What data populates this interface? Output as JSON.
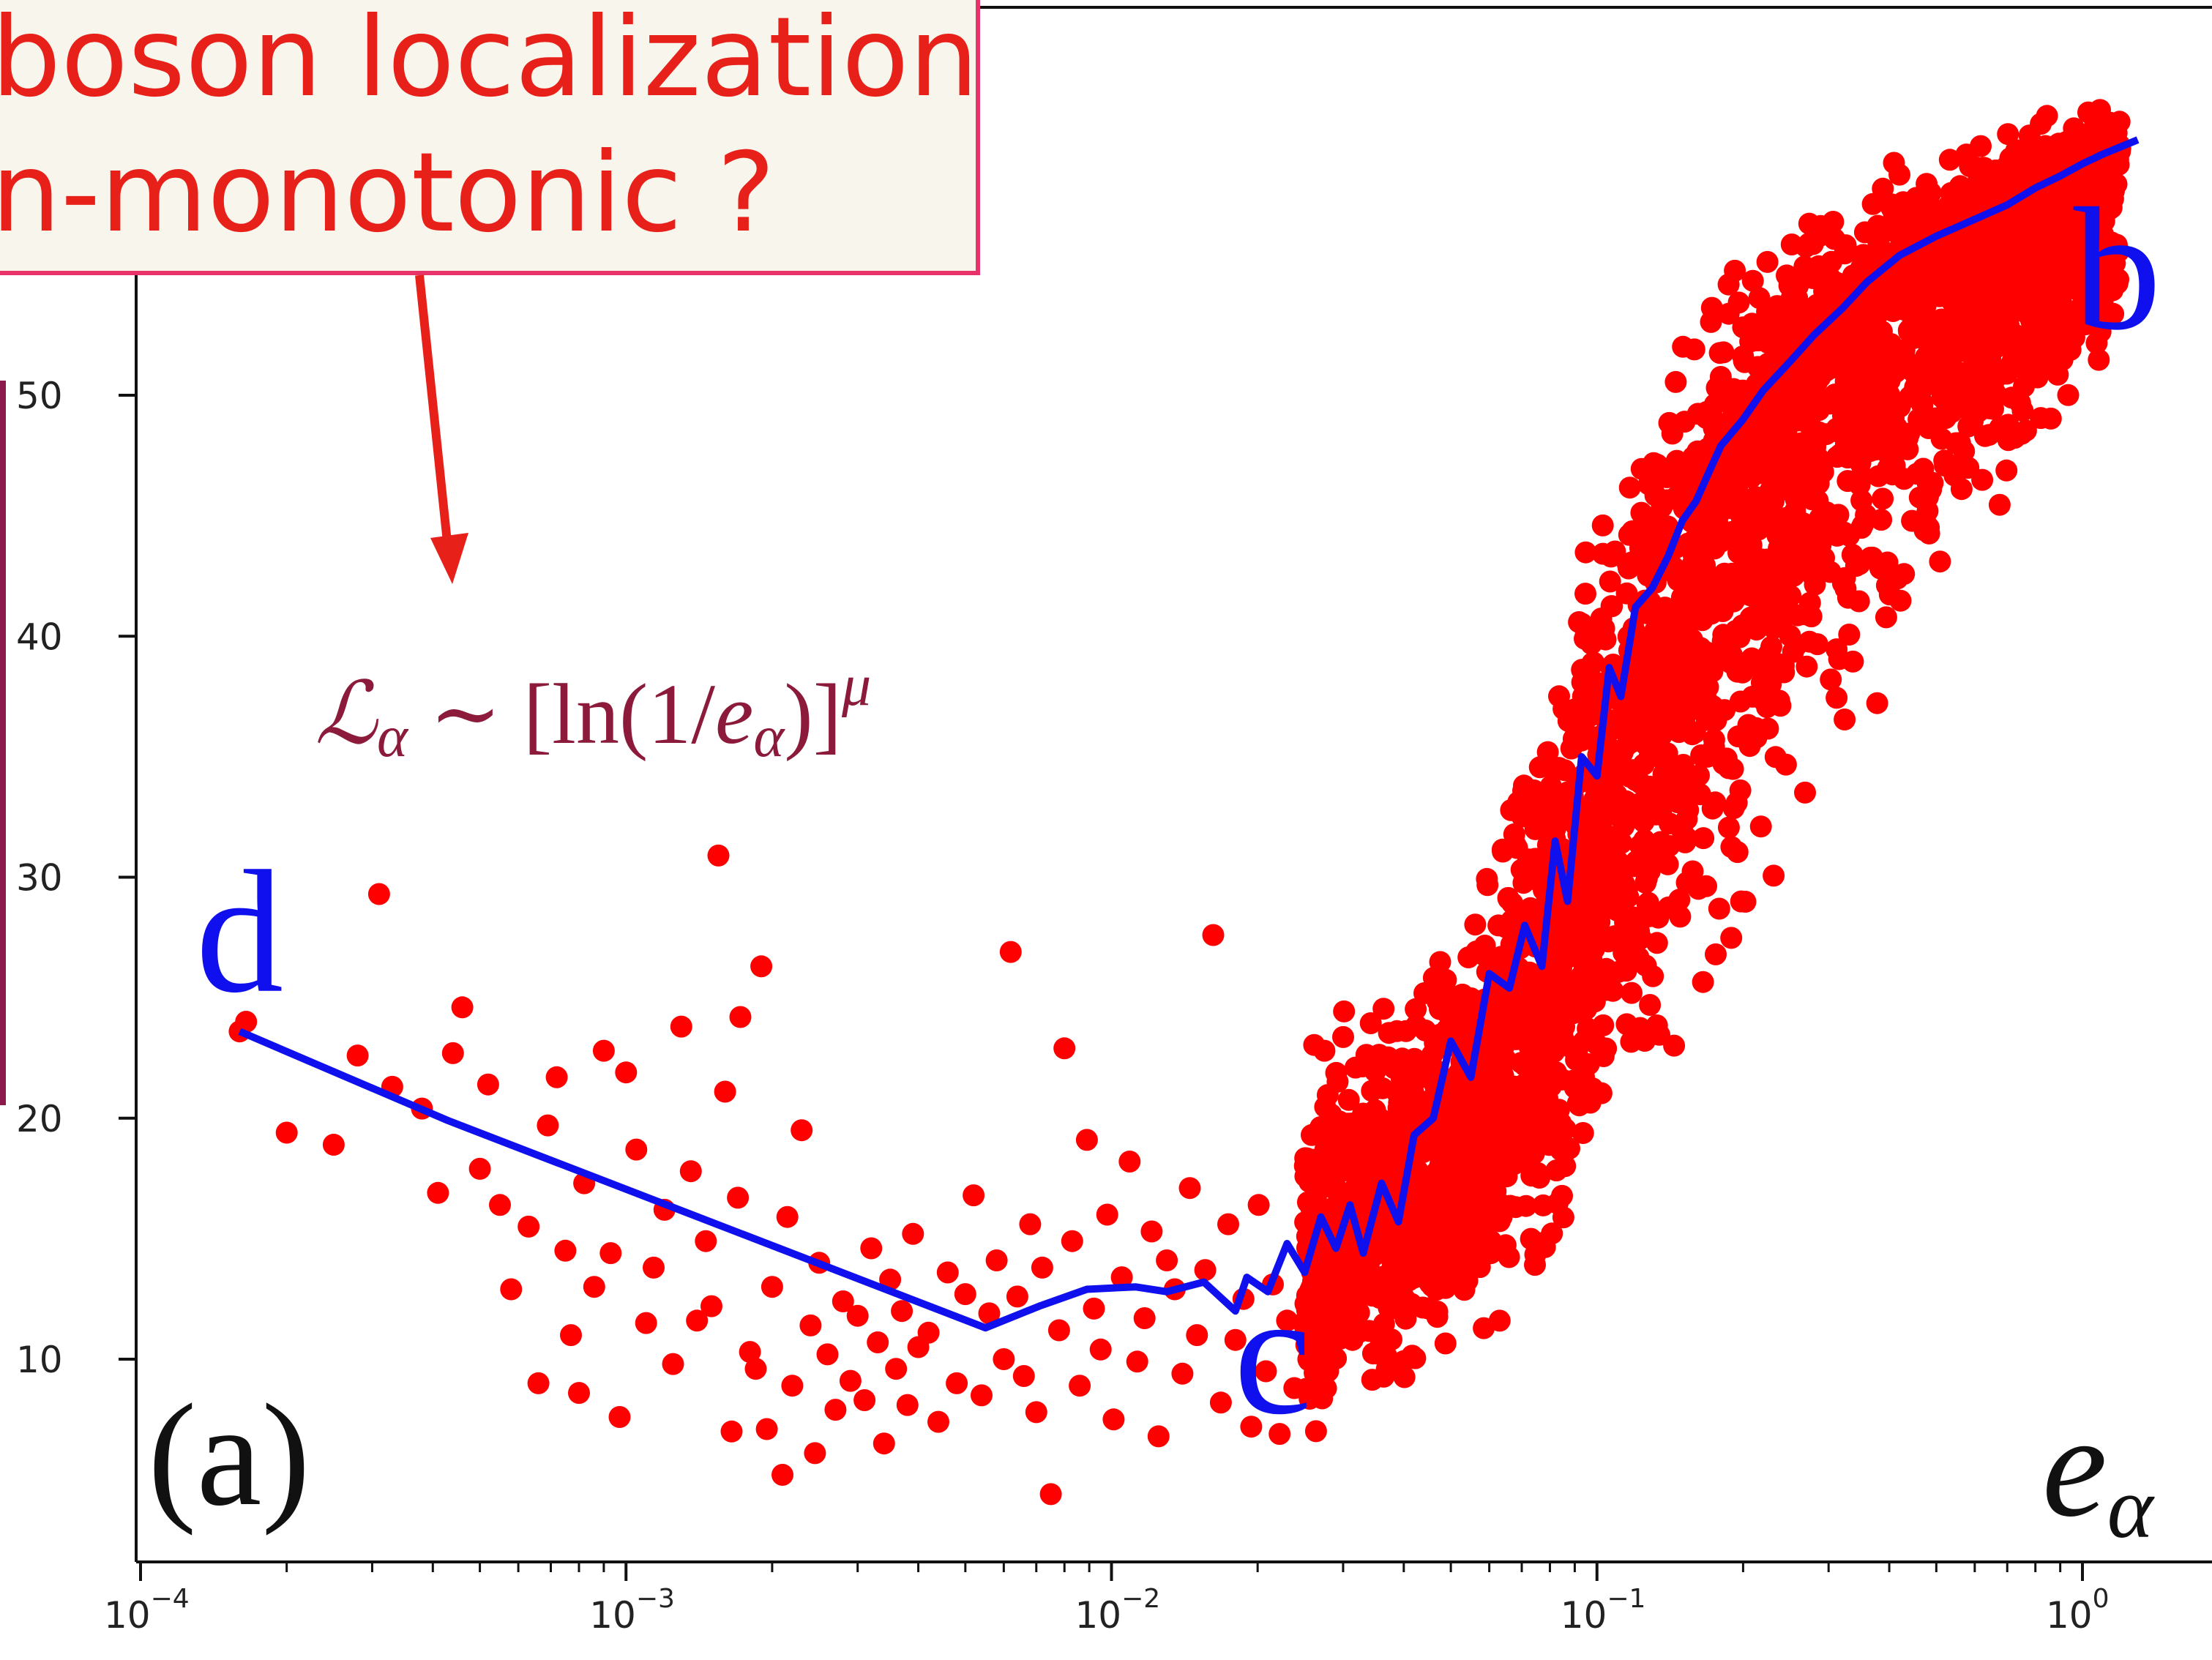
{
  "chart_data": {
    "type": "scatter",
    "title": "",
    "xlabel": "e_α",
    "ylabel": "",
    "xscale": "log",
    "xlim": [
      0.0001,
      2.0
    ],
    "ylim": [
      2.5,
      62
    ],
    "x_ticks": [
      0.0001,
      0.001,
      0.01,
      0.1,
      1
    ],
    "x_tick_base": "10",
    "x_tick_exponents": [
      "−4",
      "−3",
      "−2",
      "−1",
      "0"
    ],
    "y_ticks": [
      10,
      20,
      30,
      40,
      50
    ],
    "y_tick_labels": [
      "10",
      "20",
      "30",
      "40",
      "50"
    ],
    "panel_label": "(a)",
    "formula_annotation": {
      "lhs": "ℒ",
      "lhs_sub": "α",
      "rel": " ∼ [ln(1/",
      "var": "e",
      "var_sub": "α",
      "close": ")]",
      "power": "μ"
    },
    "callout": {
      "line1": "boson localization",
      "line2": "n-monotonic ?"
    },
    "point_labels": [
      {
        "text": "d",
        "x": 0.00016,
        "y": 26.5
      },
      {
        "text": "c",
        "x": 0.022,
        "y": 9.0
      },
      {
        "text": "b",
        "x": 1.18,
        "y": 54.0
      }
    ],
    "colors": {
      "points": "#ff0000",
      "line": "#1010ee",
      "labels": "#1010ee",
      "formula": "#8c1a3a",
      "callout_text": "#e8201a",
      "callout_border": "#e8326a",
      "callout_fill": "#f8f6ec",
      "arrow": "#e8201a",
      "left_bar": "#8c1a4a"
    },
    "series": [
      {
        "kind": "scatter",
        "x": [
          0.00016,
          0.000165,
          0.0002,
          0.00025,
          0.00028,
          0.00031,
          0.00033,
          0.00038,
          0.00041,
          0.00044,
          0.00046,
          0.0005,
          0.00052,
          0.00055,
          0.00058,
          0.00063,
          0.00066,
          0.00069,
          0.00072,
          0.00075,
          0.00077,
          0.0008,
          0.00082,
          0.00086,
          0.0009,
          0.00093,
          0.00097,
          0.001,
          0.00105,
          0.0011,
          0.00114,
          0.0012,
          0.00125,
          0.0013,
          0.00136,
          0.0014,
          0.00146,
          0.0015,
          0.00155,
          0.0016,
          0.00165,
          0.0017,
          0.00172,
          0.0018,
          0.00185,
          0.0019,
          0.00195,
          0.002,
          0.0021,
          0.00215,
          0.0022,
          0.0023,
          0.0024,
          0.00245,
          0.0025,
          0.0026,
          0.0027,
          0.0028,
          0.0029,
          0.003,
          0.0031,
          0.0032,
          0.0033,
          0.0034,
          0.0035,
          0.0036,
          0.0037,
          0.0038,
          0.0039,
          0.004,
          0.0042,
          0.0044,
          0.0046,
          0.0048,
          0.005,
          0.0052,
          0.0054,
          0.0056,
          0.0058,
          0.006,
          0.0062,
          0.0064,
          0.0066,
          0.0068,
          0.007,
          0.0072,
          0.0075,
          0.0078,
          0.008,
          0.0083,
          0.0086,
          0.0089,
          0.0092,
          0.0095,
          0.0098,
          0.0101,
          0.0105,
          0.0109,
          0.0113,
          0.0117,
          0.0121,
          0.0125,
          0.013,
          0.0135,
          0.014,
          0.0145,
          0.015,
          0.0156,
          0.0162,
          0.0168,
          0.0174,
          0.018,
          0.0187,
          0.0194,
          0.0201,
          0.0208,
          0.0215,
          0.0222,
          0.023,
          0.0238
        ],
        "y": [
          23.6,
          24.0,
          19.4,
          18.9,
          22.6,
          29.3,
          21.3,
          20.4,
          16.9,
          22.7,
          24.6,
          17.9,
          21.4,
          16.4,
          12.9,
          15.5,
          9.0,
          19.7,
          21.7,
          14.5,
          11.0,
          8.6,
          17.3,
          13.0,
          22.8,
          14.4,
          7.6,
          21.9,
          18.7,
          11.5,
          13.8,
          16.2,
          9.8,
          23.8,
          17.8,
          11.6,
          14.9,
          12.2,
          30.9,
          21.1,
          7.0,
          16.7,
          24.2,
          10.3,
          9.6,
          26.3,
          7.1,
          13.0,
          5.2,
          15.9,
          8.9,
          19.5,
          11.4,
          6.1,
          14.0,
          10.2,
          7.9,
          12.4,
          9.1,
          11.8,
          8.3,
          14.6,
          10.7,
          6.5,
          13.3,
          9.6,
          12.0,
          8.1,
          15.2,
          10.5,
          11.1,
          7.4,
          13.6,
          9.0,
          12.7,
          16.8,
          8.5,
          11.9,
          14.1,
          10.0,
          26.9,
          12.6,
          9.3,
          15.6,
          7.8,
          13.8,
          4.4,
          11.2,
          22.9,
          14.9,
          8.9,
          19.1,
          12.1,
          10.4,
          16.0,
          7.5,
          13.4,
          18.2,
          9.9,
          11.7,
          15.3,
          6.8,
          14.1,
          12.9,
          9.4,
          17.1,
          11.0,
          13.7,
          27.6,
          8.2,
          15.6,
          10.8,
          12.5,
          7.2,
          16.4,
          9.5,
          13.1,
          6.9,
          11.6,
          8.8
        ]
      },
      {
        "kind": "scatter-cloud",
        "note": "dense cloud of points, e from 0.025 to 1.3, y band widening upward",
        "x": [
          0.025,
          0.03,
          0.035,
          0.04,
          0.05,
          0.06,
          0.07,
          0.08,
          0.09,
          0.1,
          0.12,
          0.14,
          0.16,
          0.18,
          0.2,
          0.25,
          0.3,
          0.4,
          0.5,
          0.6,
          0.8,
          1.0,
          1.2
        ],
        "y_low": [
          5.5,
          6.5,
          7.0,
          7.5,
          8.0,
          9.0,
          9.5,
          10.5,
          11.5,
          13.0,
          16.0,
          18.5,
          21.0,
          23.5,
          26.0,
          30.0,
          33.0,
          37.0,
          40.0,
          42.5,
          45.5,
          47.5,
          49.5
        ],
        "y_high": [
          24.0,
          26.0,
          27.0,
          28.0,
          30.0,
          33.5,
          37.0,
          40.5,
          44.0,
          47.0,
          50.5,
          53.0,
          54.5,
          56.0,
          57.0,
          58.5,
          59.5,
          60.5,
          61.0,
          61.5,
          62.0,
          62.5,
          62.5
        ],
        "y_mid": [
          13.0,
          14.5,
          15.5,
          16.0,
          18.0,
          20.5,
          23.5,
          26.0,
          29.0,
          32.0,
          36.5,
          39.5,
          42.0,
          44.5,
          46.0,
          49.0,
          51.0,
          53.5,
          55.0,
          56.0,
          57.5,
          58.5,
          59.5
        ]
      },
      {
        "kind": "line",
        "x": [
          0.00016,
          0.00043,
          0.0055,
          0.0071,
          0.0089,
          0.0112,
          0.013,
          0.0155,
          0.018,
          0.019,
          0.021,
          0.023,
          0.025,
          0.027,
          0.029,
          0.031,
          0.033,
          0.036,
          0.039,
          0.042,
          0.046,
          0.05,
          0.055,
          0.06,
          0.066,
          0.071,
          0.077,
          0.082,
          0.087,
          0.093,
          0.1,
          0.106,
          0.112,
          0.12,
          0.13,
          0.14,
          0.15,
          0.16,
          0.17,
          0.18,
          0.2,
          0.22,
          0.25,
          0.28,
          0.32,
          0.36,
          0.42,
          0.5,
          0.6,
          0.7,
          0.8,
          0.9,
          1.0,
          1.1,
          1.3
        ],
        "y": [
          23.6,
          19.9,
          11.3,
          12.2,
          12.9,
          13.0,
          12.8,
          13.2,
          12.0,
          13.4,
          12.8,
          14.8,
          13.6,
          15.9,
          14.6,
          16.4,
          14.4,
          17.3,
          15.7,
          19.3,
          20.0,
          23.2,
          21.7,
          26.0,
          25.4,
          28.0,
          26.3,
          31.5,
          29.0,
          35.0,
          34.2,
          38.7,
          37.5,
          41.2,
          42.0,
          43.3,
          44.8,
          45.6,
          46.8,
          47.9,
          49.0,
          50.2,
          51.4,
          52.5,
          53.6,
          54.7,
          55.8,
          56.6,
          57.3,
          57.9,
          58.6,
          59.1,
          59.6,
          60.0,
          60.6
        ]
      }
    ]
  }
}
